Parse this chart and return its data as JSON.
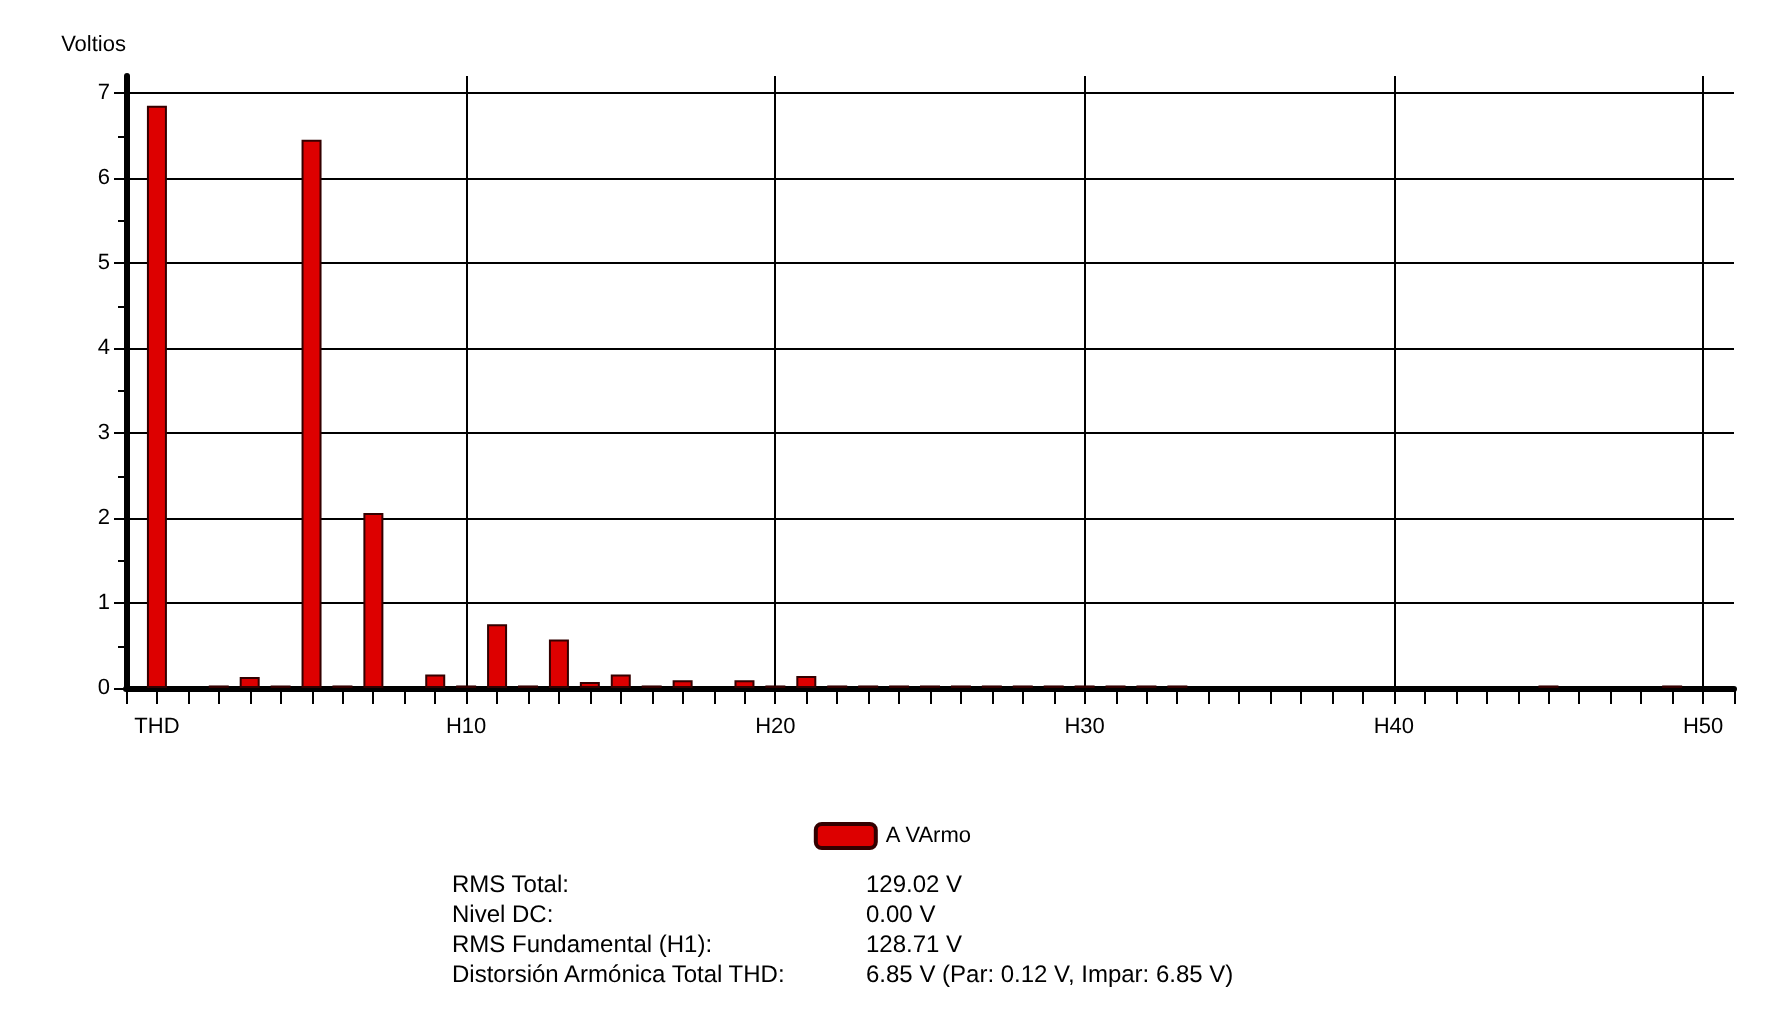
{
  "chart_data": {
    "type": "bar",
    "ylabel": "Voltios",
    "categories": [
      "THD",
      null,
      null,
      null,
      null,
      null,
      null,
      null,
      null,
      null,
      "H10",
      null,
      null,
      null,
      null,
      null,
      null,
      null,
      null,
      null,
      "H20",
      null,
      null,
      null,
      null,
      null,
      null,
      null,
      null,
      null,
      "H30",
      null,
      null,
      null,
      null,
      null,
      null,
      null,
      null,
      null,
      "H40",
      null,
      null,
      null,
      null,
      null,
      null,
      null,
      null,
      null,
      "H50"
    ],
    "series": [
      {
        "name": "A VArmo",
        "color": "#dd0000",
        "values": [
          6.85,
          null,
          0.03,
          0.13,
          0.03,
          6.45,
          0.03,
          2.06,
          0,
          0.16,
          0.03,
          0.75,
          0.03,
          0.57,
          0.07,
          0.16,
          0.03,
          0.09,
          0,
          0.09,
          0.03,
          0.14,
          0.03,
          0.03,
          0.03,
          0.03,
          0.03,
          0.03,
          0.03,
          0.03,
          0.03,
          0.03,
          0.03,
          0.03,
          0,
          0,
          0,
          0,
          0,
          0,
          0,
          0,
          0,
          0,
          0,
          0.03,
          0,
          0,
          0,
          0.03,
          0
        ]
      }
    ],
    "ylim": [
      0,
      7.2
    ],
    "yticks": [
      0,
      1,
      2,
      3,
      4,
      5,
      6,
      7
    ],
    "grid": true,
    "legend": "bottom",
    "annotations": [
      "RMS Total:",
      "129.02 V",
      "Nivel DC:",
      "0.00 V",
      "RMS Fundamental (H1):",
      "128.71 V",
      "Distorsión Armónica Total THD:",
      "6.85 V (Par: 0.12 V, Impar: 6.85 V)"
    ]
  }
}
